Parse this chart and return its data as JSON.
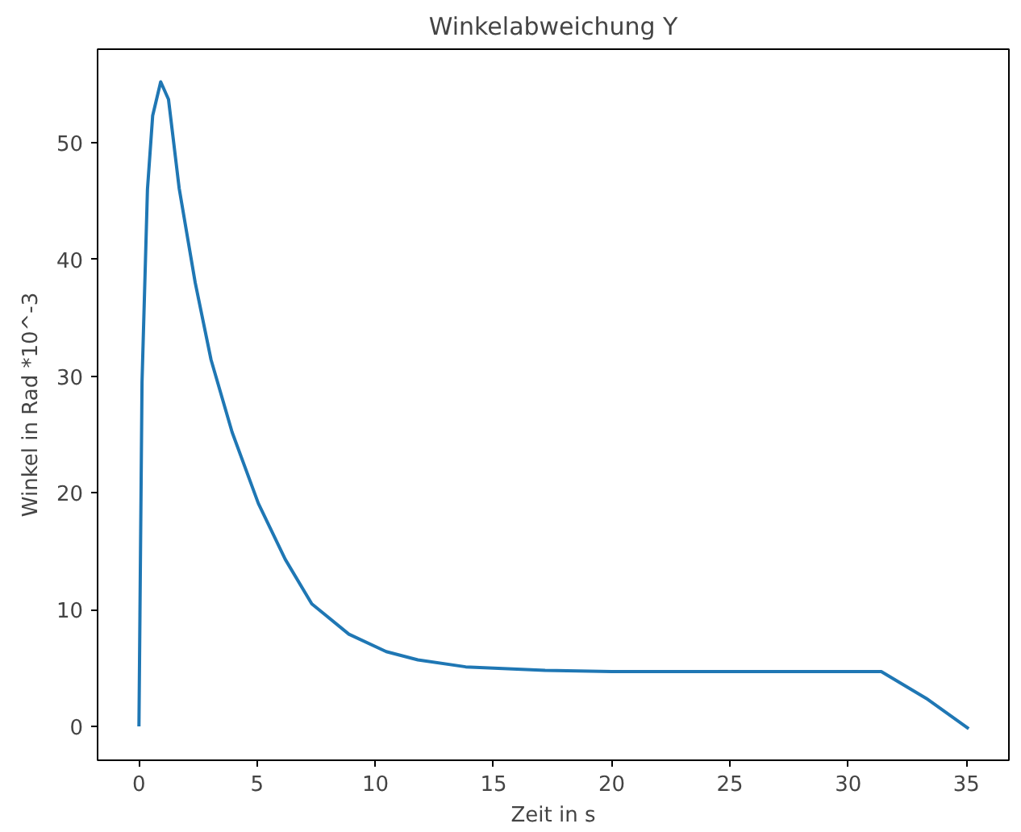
{
  "chart_data": {
    "type": "line",
    "title": "Winkelabweichung Y",
    "xlabel": "Zeit in s",
    "ylabel": "Winkel in Rad *10^-3",
    "x": [
      0,
      0.13,
      0.36,
      0.58,
      0.92,
      1.25,
      1.7,
      2.38,
      3.05,
      3.94,
      5.05,
      6.19,
      7.31,
      8.88,
      10.46,
      11.8,
      13.82,
      17.18,
      20,
      25,
      30,
      31.4,
      33.3,
      35.1
    ],
    "series": [
      {
        "color": "#1f77b4",
        "values": [
          0,
          29.5,
          46,
          52.3,
          55.2,
          53.7,
          46.1,
          38,
          31.4,
          25.2,
          19.1,
          14.3,
          10.5,
          7.9,
          6.4,
          5.7,
          5.1,
          4.8,
          4.7,
          4.7,
          4.7,
          4.7,
          2.4,
          -0.2
        ]
      }
    ],
    "xlim": [
      -1.75,
      36.8
    ],
    "ylim": [
      -2.9,
      58
    ],
    "xticks": [
      0,
      5,
      10,
      15,
      20,
      25,
      30,
      35
    ],
    "yticks": [
      0,
      10,
      20,
      30,
      40,
      50
    ],
    "grid": false,
    "marker": "none",
    "line_style": "solid"
  }
}
